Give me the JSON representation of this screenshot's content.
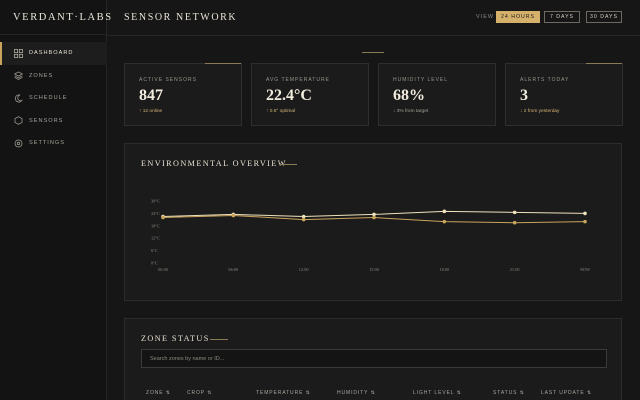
{
  "brand": "VERDANT·LABS",
  "nav": [
    {
      "label": "DASHBOARD",
      "icon": "grid-icon",
      "active": true
    },
    {
      "label": "ZONES",
      "icon": "layers-icon",
      "active": false
    },
    {
      "label": "SCHEDULE",
      "icon": "moon-icon",
      "active": false
    },
    {
      "label": "SENSORS",
      "icon": "hexagon-icon",
      "active": false
    },
    {
      "label": "SETTINGS",
      "icon": "gear-icon",
      "active": false
    }
  ],
  "header": {
    "title": "SENSOR NETWORK",
    "view_label": "VIEW",
    "ranges": [
      {
        "label": "24 HOURS",
        "active": true
      },
      {
        "label": "7 DAYS",
        "active": false
      },
      {
        "label": "30 DAYS",
        "active": false
      }
    ]
  },
  "stats": [
    {
      "label": "ACTIVE SENSORS",
      "value": "847",
      "sub": "↑ 12 online",
      "accent": true
    },
    {
      "label": "AVG TEMPERATURE",
      "value": "22.4°C",
      "sub": "↑ 0.8° optimal",
      "accent": false
    },
    {
      "label": "HUMIDITY LEVEL",
      "value": "68%",
      "sub": "↓ 3% from target",
      "accent": false
    },
    {
      "label": "ALERTS TODAY",
      "value": "3",
      "sub": "↓ 2 from yesterday",
      "accent": true
    }
  ],
  "overview": {
    "title": "ENVIRONMENTAL OVERVIEW"
  },
  "chart_data": {
    "type": "line",
    "x": [
      "00:00",
      "06:00",
      "12:00",
      "15:00",
      "18:00",
      "21:00",
      "NOW"
    ],
    "yticks": [
      "30°C",
      "24°C",
      "18°C",
      "12°C",
      "6°C",
      "0°C"
    ],
    "ylim": [
      0,
      30
    ],
    "series": [
      {
        "values": [
          22.5,
          23.5,
          22.5,
          23.5,
          25.0,
          24.5,
          24.0
        ],
        "color": "#efe2bd"
      },
      {
        "values": [
          22.0,
          23.0,
          21.0,
          22.0,
          20.0,
          19.5,
          20.0
        ],
        "color": "#c9a45c"
      }
    ],
    "grid": false,
    "legend": "none"
  },
  "zones": {
    "title": "ZONE STATUS",
    "search_placeholder": "Search zones by name or ID...",
    "columns": [
      "ZONE ⇅",
      "CROP ⇅",
      "TEMPERATURE ⇅",
      "HUMIDITY ⇅",
      "LIGHT LEVEL ⇅",
      "STATUS ⇅",
      "LAST UPDATE ⇅"
    ]
  },
  "colors": {
    "accent": "#d4b06a",
    "background": "#161616",
    "panel": "#1b1b1b"
  }
}
